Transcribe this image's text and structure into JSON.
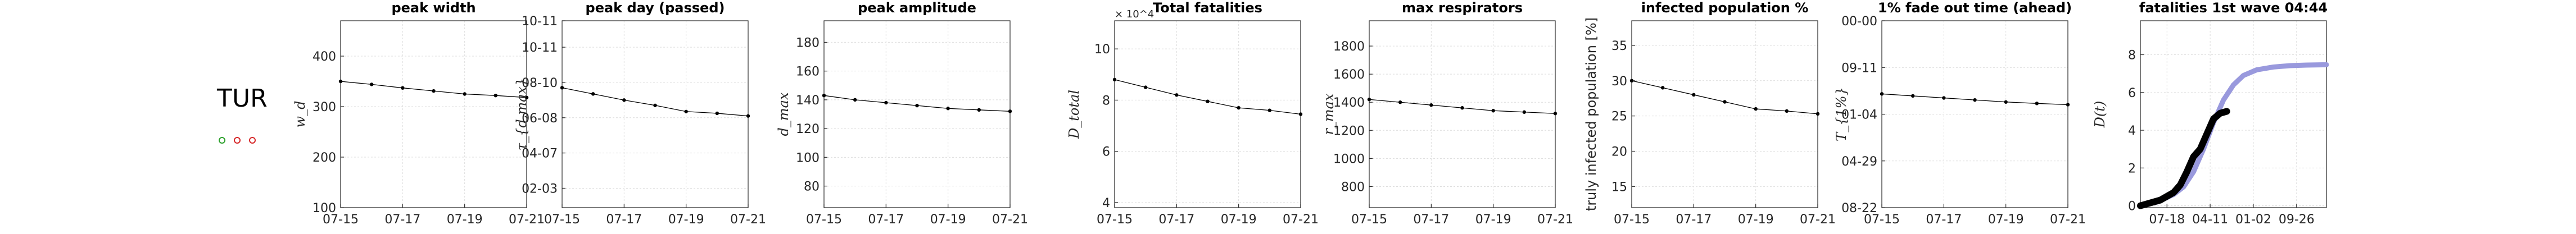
{
  "country": "TUR",
  "legend_markers": [
    {
      "name": "green-circle",
      "color": "#2ca02c"
    },
    {
      "name": "red-circle-1",
      "color": "#d62728"
    },
    {
      "name": "red-circle-2",
      "color": "#d62728"
    }
  ],
  "colors": {
    "series": "#000000",
    "fit": "#9999dd",
    "observed": "#000000"
  },
  "chart_data": [
    {
      "type": "line",
      "title": "peak width",
      "ylabel": "w_d",
      "x": [
        "07-15",
        "07-16",
        "07-17",
        "07-18",
        "07-19",
        "07-20",
        "07-21"
      ],
      "xticks": [
        "07-15",
        "07-17",
        "07-19",
        "07-21"
      ],
      "values": [
        350,
        344,
        337,
        331,
        325,
        322,
        318
      ],
      "ylim": [
        100,
        470
      ],
      "yticks": [
        100,
        200,
        300,
        400
      ],
      "yticklabels": [
        "100",
        "200",
        "300",
        "400"
      ],
      "grid": true
    },
    {
      "type": "line",
      "title": "peak day (passed)",
      "ylabel": "τ_{d,max}",
      "x": [
        "07-15",
        "07-16",
        "07-17",
        "07-18",
        "07-19",
        "07-20",
        "07-21"
      ],
      "xticks": [
        "07-15",
        "07-17",
        "07-19",
        "07-21"
      ],
      "values": [
        6.8,
        6.45,
        6.1,
        5.8,
        5.45,
        5.35,
        5.2
      ],
      "ylim": [
        0,
        10.6
      ],
      "yticks": [
        1.1,
        3.1,
        5.1,
        7.1,
        9.1,
        10.6
      ],
      "yticklabels": [
        "02-03",
        "04-07",
        "06-08",
        "08-10",
        "10-11",
        "10-11"
      ],
      "grid": true
    },
    {
      "type": "line",
      "title": "peak amplitude",
      "ylabel": "d_max",
      "x": [
        "07-15",
        "07-16",
        "07-17",
        "07-18",
        "07-19",
        "07-20",
        "07-21"
      ],
      "xticks": [
        "07-15",
        "07-17",
        "07-19",
        "07-21"
      ],
      "values": [
        143,
        140,
        138,
        136,
        134,
        133,
        132
      ],
      "ylim": [
        65,
        195
      ],
      "yticks": [
        80,
        100,
        120,
        140,
        160,
        180
      ],
      "yticklabels": [
        "80",
        "100",
        "120",
        "140",
        "160",
        "180"
      ],
      "grid": true
    },
    {
      "type": "line",
      "title": "Total fatalities",
      "ylabel": "D_total",
      "exponent": "× 10^4",
      "x": [
        "07-15",
        "07-16",
        "07-17",
        "07-18",
        "07-19",
        "07-20",
        "07-21"
      ],
      "xticks": [
        "07-15",
        "07-17",
        "07-19",
        "07-21"
      ],
      "values": [
        8.8,
        8.5,
        8.2,
        7.95,
        7.7,
        7.6,
        7.45
      ],
      "ylim": [
        3.8,
        11.1
      ],
      "yticks": [
        4,
        6,
        8,
        10
      ],
      "yticklabels": [
        "4",
        "6",
        "8",
        "10"
      ],
      "grid": true
    },
    {
      "type": "line",
      "title": "max respirators",
      "ylabel": "r_max",
      "x": [
        "07-15",
        "07-16",
        "07-17",
        "07-18",
        "07-19",
        "07-20",
        "07-21"
      ],
      "xticks": [
        "07-15",
        "07-17",
        "07-19",
        "07-21"
      ],
      "values": [
        1420,
        1400,
        1380,
        1360,
        1340,
        1330,
        1320
      ],
      "ylim": [
        650,
        1980
      ],
      "yticks": [
        800,
        1000,
        1200,
        1400,
        1600,
        1800
      ],
      "yticklabels": [
        "800",
        "1000",
        "1200",
        "1400",
        "1600",
        "1800"
      ],
      "grid": true
    },
    {
      "type": "line",
      "title": "infected population %",
      "ylabel": "truly infected population [%]",
      "x": [
        "07-15",
        "07-16",
        "07-17",
        "07-18",
        "07-19",
        "07-20",
        "07-21"
      ],
      "xticks": [
        "07-15",
        "07-17",
        "07-19",
        "07-21"
      ],
      "values": [
        30,
        29,
        28,
        27,
        26,
        25.7,
        25.3
      ],
      "ylim": [
        12,
        38.5
      ],
      "yticks": [
        15,
        20,
        25,
        30,
        35
      ],
      "yticklabels": [
        "15",
        "20",
        "25",
        "30",
        "35"
      ],
      "grid": true
    },
    {
      "type": "line",
      "title": "1% fade out time (ahead)",
      "ylabel": "T_{1%}",
      "x": [
        "07-15",
        "07-16",
        "07-17",
        "07-18",
        "07-19",
        "07-20",
        "07-21"
      ],
      "xticks": [
        "07-15",
        "07-17",
        "07-19",
        "07-21"
      ],
      "values": [
        5.6,
        5.5,
        5.4,
        5.3,
        5.2,
        5.13,
        5.07
      ],
      "ylim": [
        0,
        9.2
      ],
      "yticks": [
        0,
        2.3,
        4.6,
        6.9,
        9.2
      ],
      "yticklabels": [
        "08-22",
        "04-29",
        "01-04",
        "09-11",
        "00-00"
      ],
      "grid": true
    },
    {
      "type": "line",
      "title": "fatalities 1st wave 04:44",
      "ylabel": "D(t)",
      "xticks": [
        "07-18",
        "04-11",
        "01-02",
        "09-26"
      ],
      "xtick_pos": [
        0.8,
        2.1,
        3.4,
        4.7
      ],
      "xlim": [
        0,
        5.6
      ],
      "fit": {
        "x": [
          0,
          0.5,
          1.0,
          1.3,
          1.6,
          1.9,
          2.2,
          2.5,
          2.8,
          3.1,
          3.5,
          4.0,
          4.5,
          5.0,
          5.6
        ],
        "y": [
          0,
          0.2,
          0.6,
          1.0,
          1.8,
          3.0,
          4.4,
          5.6,
          6.4,
          6.9,
          7.2,
          7.35,
          7.42,
          7.45,
          7.47
        ]
      },
      "observed": {
        "x": [
          0,
          0.2,
          0.4,
          0.6,
          0.8,
          1.0,
          1.2,
          1.4,
          1.6,
          1.8,
          2.0,
          2.2,
          2.4,
          2.6
        ],
        "y": [
          0,
          0.1,
          0.2,
          0.3,
          0.5,
          0.7,
          1.1,
          1.8,
          2.6,
          3.0,
          3.8,
          4.6,
          4.9,
          5.0
        ]
      },
      "ylim": [
        -0.1,
        9.8
      ],
      "yticks": [
        0,
        2,
        4,
        6,
        8
      ],
      "yticklabels": [
        "0",
        "2",
        "4",
        "6",
        "8"
      ],
      "grid": true
    }
  ]
}
